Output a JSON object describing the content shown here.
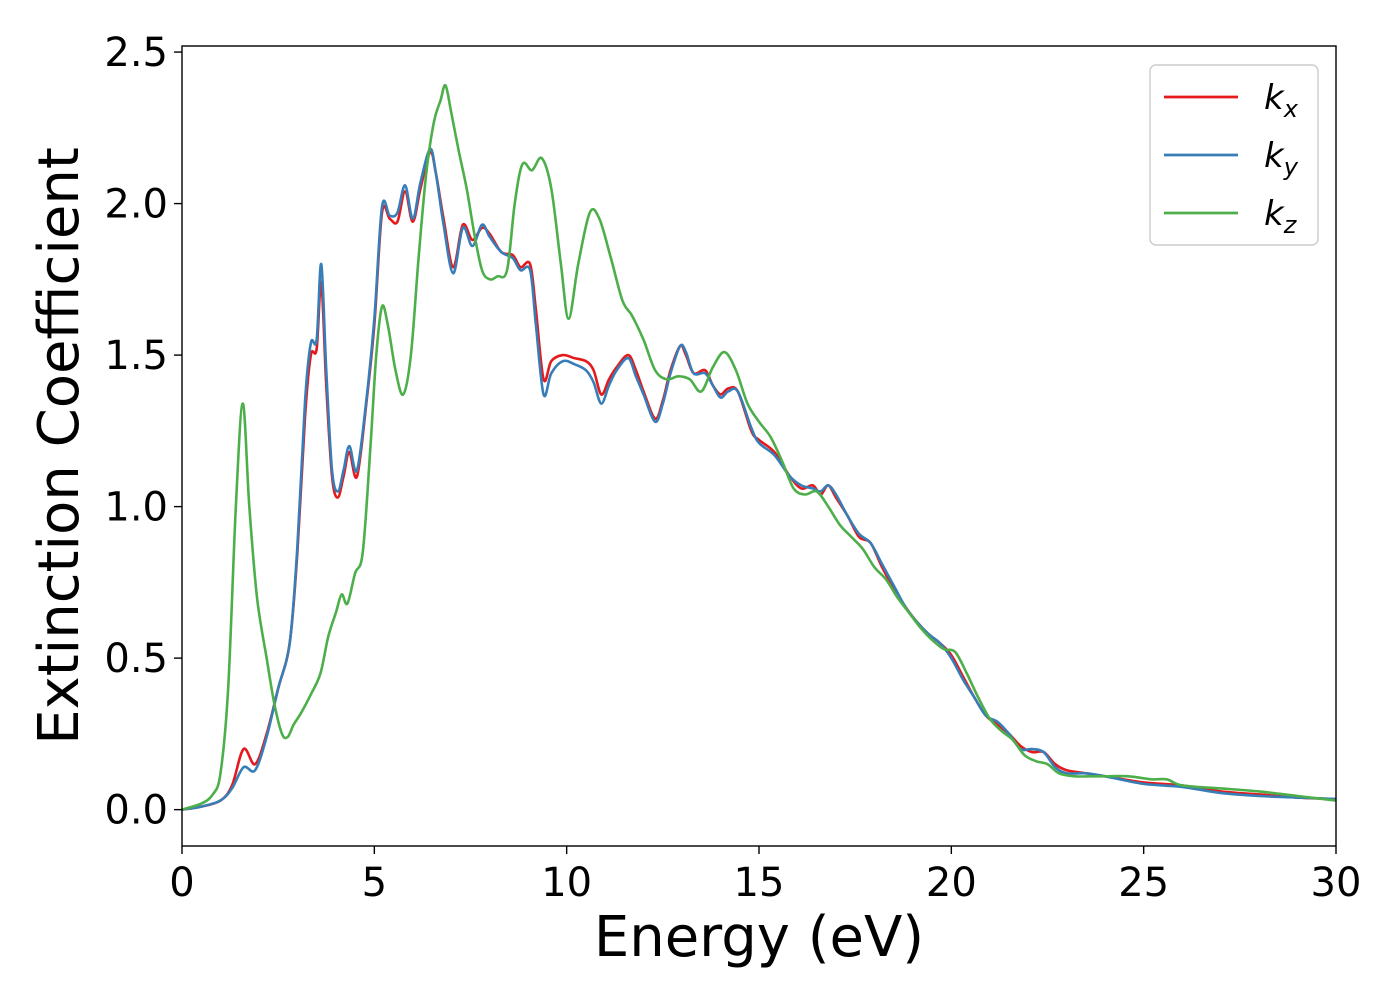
{
  "chart_data": {
    "type": "line",
    "title": "",
    "xlabel": "Energy (eV)",
    "ylabel": "Extinction Coefficient",
    "xlim": [
      0,
      30
    ],
    "ylim": [
      -0.12,
      2.52
    ],
    "x_ticks": [
      0,
      5,
      10,
      15,
      20,
      25,
      30
    ],
    "x_tick_labels": [
      "0",
      "5",
      "10",
      "15",
      "20",
      "25",
      "30"
    ],
    "y_ticks": [
      0.0,
      0.5,
      1.0,
      1.5,
      2.0,
      2.5
    ],
    "y_tick_labels": [
      "0.0",
      "0.5",
      "1.0",
      "1.5",
      "2.0",
      "2.5"
    ],
    "grid": false,
    "legend_position": "top-right",
    "series": [
      {
        "label_main": "k",
        "label_sub": "x",
        "color": "#e41a1c",
        "points": [
          [
            0,
            0.0
          ],
          [
            0.5,
            0.01
          ],
          [
            1.0,
            0.03
          ],
          [
            1.3,
            0.08
          ],
          [
            1.6,
            0.2
          ],
          [
            1.9,
            0.15
          ],
          [
            2.2,
            0.25
          ],
          [
            2.5,
            0.4
          ],
          [
            2.8,
            0.55
          ],
          [
            3.0,
            0.85
          ],
          [
            3.2,
            1.3
          ],
          [
            3.35,
            1.5
          ],
          [
            3.5,
            1.52
          ],
          [
            3.62,
            1.74
          ],
          [
            3.75,
            1.4
          ],
          [
            3.9,
            1.1
          ],
          [
            4.05,
            1.03
          ],
          [
            4.2,
            1.1
          ],
          [
            4.35,
            1.18
          ],
          [
            4.55,
            1.1
          ],
          [
            4.8,
            1.35
          ],
          [
            5.0,
            1.6
          ],
          [
            5.2,
            1.97
          ],
          [
            5.4,
            1.95
          ],
          [
            5.6,
            1.94
          ],
          [
            5.8,
            2.04
          ],
          [
            6.0,
            1.94
          ],
          [
            6.2,
            2.05
          ],
          [
            6.45,
            2.17
          ],
          [
            6.6,
            2.1
          ],
          [
            6.8,
            1.95
          ],
          [
            7.05,
            1.79
          ],
          [
            7.3,
            1.93
          ],
          [
            7.55,
            1.88
          ],
          [
            7.8,
            1.92
          ],
          [
            8.0,
            1.9
          ],
          [
            8.3,
            1.84
          ],
          [
            8.6,
            1.83
          ],
          [
            8.8,
            1.79
          ],
          [
            9.05,
            1.8
          ],
          [
            9.2,
            1.65
          ],
          [
            9.4,
            1.42
          ],
          [
            9.6,
            1.48
          ],
          [
            9.9,
            1.5
          ],
          [
            10.2,
            1.49
          ],
          [
            10.5,
            1.48
          ],
          [
            10.7,
            1.45
          ],
          [
            10.9,
            1.37
          ],
          [
            11.1,
            1.42
          ],
          [
            11.3,
            1.46
          ],
          [
            11.6,
            1.5
          ],
          [
            11.8,
            1.45
          ],
          [
            12.0,
            1.38
          ],
          [
            12.3,
            1.29
          ],
          [
            12.5,
            1.35
          ],
          [
            12.7,
            1.45
          ],
          [
            12.95,
            1.53
          ],
          [
            13.1,
            1.5
          ],
          [
            13.3,
            1.44
          ],
          [
            13.6,
            1.45
          ],
          [
            13.8,
            1.4
          ],
          [
            14.0,
            1.37
          ],
          [
            14.2,
            1.39
          ],
          [
            14.45,
            1.38
          ],
          [
            14.8,
            1.25
          ],
          [
            15.0,
            1.22
          ],
          [
            15.4,
            1.18
          ],
          [
            15.8,
            1.1
          ],
          [
            16.1,
            1.06
          ],
          [
            16.4,
            1.07
          ],
          [
            16.6,
            1.04
          ],
          [
            16.8,
            1.07
          ],
          [
            17.0,
            1.03
          ],
          [
            17.3,
            0.97
          ],
          [
            17.6,
            0.9
          ],
          [
            17.9,
            0.88
          ],
          [
            18.2,
            0.8
          ],
          [
            18.5,
            0.73
          ],
          [
            18.8,
            0.67
          ],
          [
            19.1,
            0.62
          ],
          [
            19.4,
            0.58
          ],
          [
            19.7,
            0.55
          ],
          [
            20.0,
            0.51
          ],
          [
            20.3,
            0.44
          ],
          [
            20.6,
            0.37
          ],
          [
            20.9,
            0.31
          ],
          [
            21.2,
            0.28
          ],
          [
            21.5,
            0.25
          ],
          [
            21.8,
            0.21
          ],
          [
            22.1,
            0.19
          ],
          [
            22.4,
            0.19
          ],
          [
            22.7,
            0.15
          ],
          [
            23.0,
            0.13
          ],
          [
            23.5,
            0.12
          ],
          [
            24.0,
            0.11
          ],
          [
            25.0,
            0.09
          ],
          [
            26.0,
            0.08
          ],
          [
            27.0,
            0.06
          ],
          [
            28.0,
            0.05
          ],
          [
            29.0,
            0.04
          ],
          [
            30.0,
            0.035
          ]
        ]
      },
      {
        "label_main": "k",
        "label_sub": "y",
        "color": "#377eb8",
        "points": [
          [
            0,
            0.0
          ],
          [
            0.5,
            0.01
          ],
          [
            1.0,
            0.03
          ],
          [
            1.3,
            0.07
          ],
          [
            1.6,
            0.14
          ],
          [
            1.9,
            0.13
          ],
          [
            2.2,
            0.24
          ],
          [
            2.5,
            0.4
          ],
          [
            2.8,
            0.55
          ],
          [
            3.0,
            0.87
          ],
          [
            3.2,
            1.35
          ],
          [
            3.35,
            1.54
          ],
          [
            3.5,
            1.55
          ],
          [
            3.62,
            1.8
          ],
          [
            3.75,
            1.45
          ],
          [
            3.9,
            1.12
          ],
          [
            4.05,
            1.05
          ],
          [
            4.2,
            1.12
          ],
          [
            4.35,
            1.2
          ],
          [
            4.55,
            1.12
          ],
          [
            4.8,
            1.36
          ],
          [
            5.0,
            1.62
          ],
          [
            5.2,
            1.99
          ],
          [
            5.4,
            1.96
          ],
          [
            5.6,
            1.97
          ],
          [
            5.8,
            2.06
          ],
          [
            6.0,
            1.95
          ],
          [
            6.2,
            2.07
          ],
          [
            6.45,
            2.18
          ],
          [
            6.6,
            2.1
          ],
          [
            6.8,
            1.93
          ],
          [
            7.05,
            1.77
          ],
          [
            7.3,
            1.92
          ],
          [
            7.55,
            1.86
          ],
          [
            7.8,
            1.93
          ],
          [
            8.0,
            1.89
          ],
          [
            8.3,
            1.84
          ],
          [
            8.6,
            1.82
          ],
          [
            8.8,
            1.78
          ],
          [
            9.05,
            1.78
          ],
          [
            9.2,
            1.6
          ],
          [
            9.4,
            1.37
          ],
          [
            9.6,
            1.44
          ],
          [
            9.9,
            1.48
          ],
          [
            10.2,
            1.47
          ],
          [
            10.5,
            1.45
          ],
          [
            10.7,
            1.41
          ],
          [
            10.9,
            1.34
          ],
          [
            11.1,
            1.4
          ],
          [
            11.3,
            1.45
          ],
          [
            11.6,
            1.49
          ],
          [
            11.8,
            1.43
          ],
          [
            12.0,
            1.37
          ],
          [
            12.3,
            1.28
          ],
          [
            12.5,
            1.34
          ],
          [
            12.7,
            1.44
          ],
          [
            12.95,
            1.53
          ],
          [
            13.1,
            1.51
          ],
          [
            13.3,
            1.44
          ],
          [
            13.6,
            1.44
          ],
          [
            13.8,
            1.4
          ],
          [
            14.0,
            1.36
          ],
          [
            14.2,
            1.38
          ],
          [
            14.45,
            1.38
          ],
          [
            14.8,
            1.26
          ],
          [
            15.0,
            1.21
          ],
          [
            15.4,
            1.17
          ],
          [
            15.8,
            1.1
          ],
          [
            16.1,
            1.07
          ],
          [
            16.4,
            1.06
          ],
          [
            16.6,
            1.05
          ],
          [
            16.8,
            1.07
          ],
          [
            17.0,
            1.04
          ],
          [
            17.3,
            0.97
          ],
          [
            17.6,
            0.91
          ],
          [
            17.9,
            0.88
          ],
          [
            18.2,
            0.81
          ],
          [
            18.5,
            0.74
          ],
          [
            18.8,
            0.67
          ],
          [
            19.1,
            0.62
          ],
          [
            19.4,
            0.58
          ],
          [
            19.7,
            0.55
          ],
          [
            20.0,
            0.5
          ],
          [
            20.3,
            0.43
          ],
          [
            20.6,
            0.37
          ],
          [
            20.9,
            0.31
          ],
          [
            21.2,
            0.29
          ],
          [
            21.5,
            0.25
          ],
          [
            21.8,
            0.2
          ],
          [
            22.1,
            0.2
          ],
          [
            22.4,
            0.19
          ],
          [
            22.7,
            0.14
          ],
          [
            23.0,
            0.12
          ],
          [
            23.5,
            0.12
          ],
          [
            24.0,
            0.11
          ],
          [
            25.0,
            0.085
          ],
          [
            26.0,
            0.075
          ],
          [
            27.0,
            0.055
          ],
          [
            28.0,
            0.045
          ],
          [
            29.0,
            0.04
          ],
          [
            30.0,
            0.035
          ]
        ]
      },
      {
        "label_main": "k",
        "label_sub": "z",
        "color": "#4daf4a",
        "points": [
          [
            0,
            0.0
          ],
          [
            0.5,
            0.02
          ],
          [
            0.8,
            0.05
          ],
          [
            1.0,
            0.12
          ],
          [
            1.2,
            0.4
          ],
          [
            1.4,
            1.0
          ],
          [
            1.58,
            1.34
          ],
          [
            1.75,
            1.0
          ],
          [
            1.95,
            0.7
          ],
          [
            2.2,
            0.5
          ],
          [
            2.4,
            0.35
          ],
          [
            2.6,
            0.25
          ],
          [
            2.75,
            0.24
          ],
          [
            2.9,
            0.28
          ],
          [
            3.1,
            0.32
          ],
          [
            3.35,
            0.38
          ],
          [
            3.6,
            0.45
          ],
          [
            3.8,
            0.57
          ],
          [
            4.0,
            0.65
          ],
          [
            4.15,
            0.71
          ],
          [
            4.3,
            0.68
          ],
          [
            4.5,
            0.78
          ],
          [
            4.7,
            0.85
          ],
          [
            4.9,
            1.2
          ],
          [
            5.05,
            1.5
          ],
          [
            5.2,
            1.66
          ],
          [
            5.35,
            1.6
          ],
          [
            5.55,
            1.45
          ],
          [
            5.75,
            1.37
          ],
          [
            5.95,
            1.5
          ],
          [
            6.15,
            1.82
          ],
          [
            6.35,
            2.1
          ],
          [
            6.55,
            2.27
          ],
          [
            6.72,
            2.34
          ],
          [
            6.85,
            2.39
          ],
          [
            7.0,
            2.3
          ],
          [
            7.2,
            2.17
          ],
          [
            7.4,
            2.05
          ],
          [
            7.6,
            1.9
          ],
          [
            7.8,
            1.78
          ],
          [
            8.0,
            1.75
          ],
          [
            8.2,
            1.76
          ],
          [
            8.45,
            1.78
          ],
          [
            8.65,
            2.0
          ],
          [
            8.85,
            2.13
          ],
          [
            9.1,
            2.11
          ],
          [
            9.35,
            2.15
          ],
          [
            9.6,
            2.05
          ],
          [
            9.85,
            1.8
          ],
          [
            10.05,
            1.62
          ],
          [
            10.3,
            1.8
          ],
          [
            10.6,
            1.97
          ],
          [
            10.85,
            1.95
          ],
          [
            11.15,
            1.82
          ],
          [
            11.45,
            1.68
          ],
          [
            11.7,
            1.63
          ],
          [
            12.0,
            1.55
          ],
          [
            12.3,
            1.45
          ],
          [
            12.6,
            1.42
          ],
          [
            12.9,
            1.43
          ],
          [
            13.2,
            1.42
          ],
          [
            13.5,
            1.38
          ],
          [
            13.8,
            1.46
          ],
          [
            14.1,
            1.51
          ],
          [
            14.4,
            1.45
          ],
          [
            14.7,
            1.34
          ],
          [
            15.0,
            1.28
          ],
          [
            15.3,
            1.23
          ],
          [
            15.6,
            1.15
          ],
          [
            15.9,
            1.06
          ],
          [
            16.2,
            1.04
          ],
          [
            16.5,
            1.05
          ],
          [
            16.8,
            1.0
          ],
          [
            17.1,
            0.94
          ],
          [
            17.4,
            0.9
          ],
          [
            17.7,
            0.86
          ],
          [
            18.0,
            0.8
          ],
          [
            18.3,
            0.76
          ],
          [
            18.6,
            0.7
          ],
          [
            18.9,
            0.65
          ],
          [
            19.2,
            0.6
          ],
          [
            19.5,
            0.56
          ],
          [
            19.8,
            0.53
          ],
          [
            20.1,
            0.52
          ],
          [
            20.4,
            0.45
          ],
          [
            20.7,
            0.37
          ],
          [
            21.0,
            0.3
          ],
          [
            21.3,
            0.26
          ],
          [
            21.6,
            0.23
          ],
          [
            21.9,
            0.18
          ],
          [
            22.2,
            0.16
          ],
          [
            22.5,
            0.15
          ],
          [
            22.8,
            0.12
          ],
          [
            23.2,
            0.11
          ],
          [
            23.6,
            0.11
          ],
          [
            24.0,
            0.11
          ],
          [
            24.6,
            0.11
          ],
          [
            25.2,
            0.1
          ],
          [
            25.6,
            0.1
          ],
          [
            26.0,
            0.08
          ],
          [
            27.0,
            0.07
          ],
          [
            28.0,
            0.06
          ],
          [
            29.0,
            0.045
          ],
          [
            30.0,
            0.03
          ]
        ]
      }
    ]
  }
}
